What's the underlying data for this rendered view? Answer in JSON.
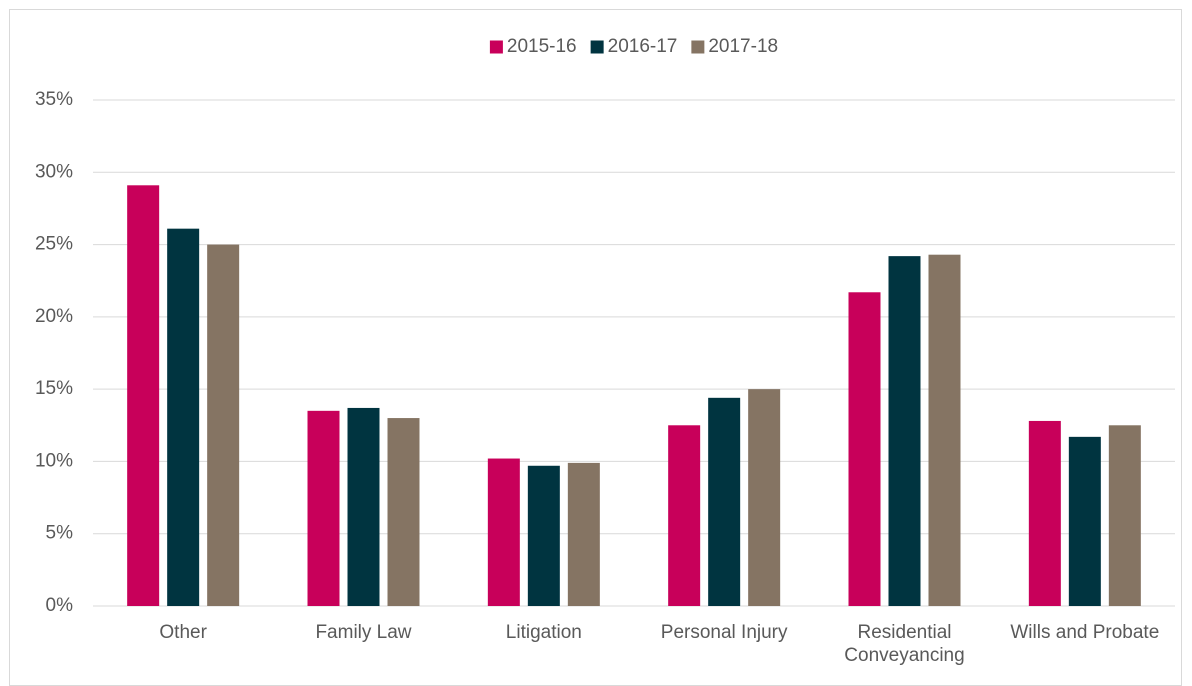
{
  "chart_data": {
    "type": "bar",
    "categories": [
      "Other",
      "Family Law",
      "Litigation",
      "Personal Injury",
      "Residential Conveyancing",
      "Wills and Probate"
    ],
    "series": [
      {
        "name": "2015-16",
        "color": "#c8005a",
        "values": [
          29.1,
          13.5,
          10.2,
          12.5,
          21.7,
          12.8
        ]
      },
      {
        "name": "2016-17",
        "color": "#003440",
        "values": [
          26.1,
          13.7,
          9.7,
          14.4,
          24.2,
          11.7
        ]
      },
      {
        "name": "2017-18",
        "color": "#857463",
        "values": [
          25.0,
          13.0,
          9.9,
          15.0,
          24.3,
          12.5
        ]
      }
    ],
    "ylim": [
      0,
      35
    ],
    "yticks": [
      {
        "value": 0,
        "label": "0%"
      },
      {
        "value": 5,
        "label": "5%"
      },
      {
        "value": 10,
        "label": "10%"
      },
      {
        "value": 15,
        "label": "15%"
      },
      {
        "value": 20,
        "label": "20%"
      },
      {
        "value": 25,
        "label": "25%"
      },
      {
        "value": 30,
        "label": "30%"
      },
      {
        "value": 35,
        "label": "35%"
      }
    ],
    "grid": true,
    "legend": "top"
  }
}
